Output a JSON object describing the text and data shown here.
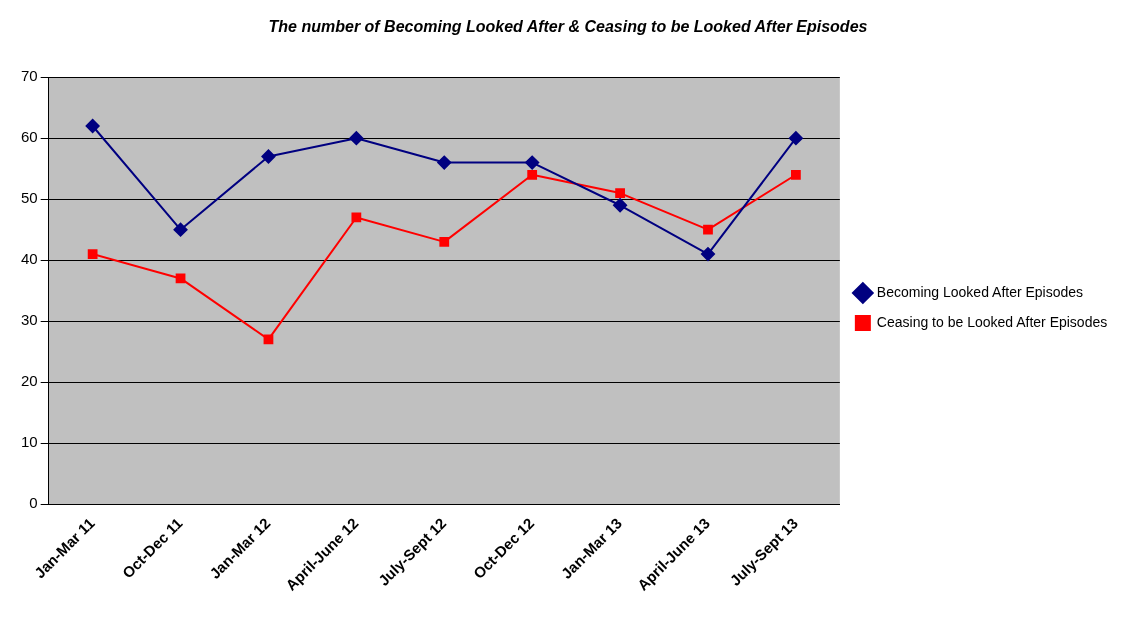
{
  "chart_data": {
    "type": "line",
    "title": "The number of Becoming Looked After & Ceasing to be Looked After Episodes",
    "categories": [
      "Jan-Mar 11",
      "Oct-Dec 11",
      "Jan-Mar 12",
      "April-June 12",
      "July-Sept 12",
      "Oct-Dec 12",
      "Jan-Mar 13",
      "April-June 13",
      "July-Sept 13"
    ],
    "series": [
      {
        "name": "Becoming Looked After Episodes",
        "color": "#000080",
        "marker": "diamond",
        "values": [
          62,
          45,
          57,
          60,
          56,
          56,
          49,
          41,
          60
        ]
      },
      {
        "name": "Ceasing to be Looked After Episodes",
        "color": "#ff0000",
        "marker": "square",
        "values": [
          41,
          37,
          27,
          47,
          43,
          54,
          51,
          45,
          54
        ]
      }
    ],
    "ylim": [
      0,
      70
    ],
    "yticks": [
      0,
      10,
      20,
      30,
      40,
      50,
      60,
      70
    ],
    "grid": "y",
    "legend": "right",
    "line_style": "solid"
  }
}
